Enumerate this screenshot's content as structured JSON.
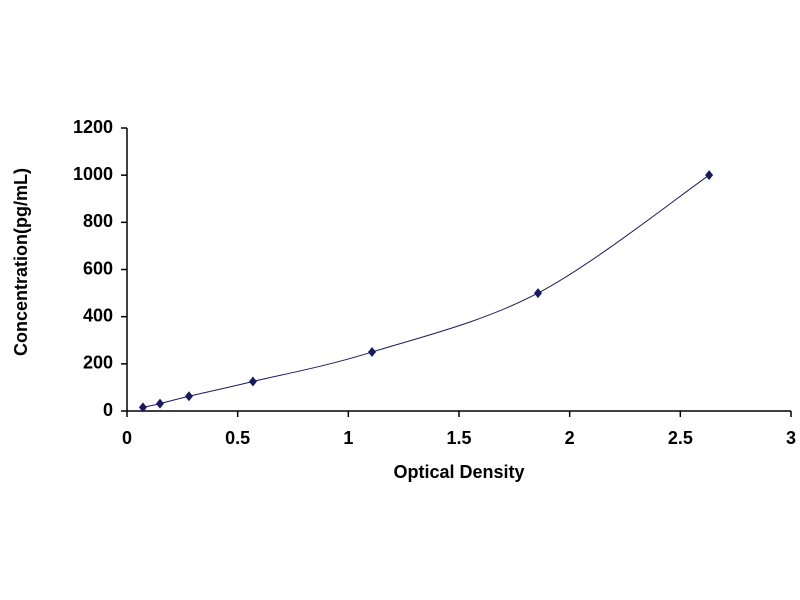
{
  "chart_data": {
    "type": "scatter",
    "x_label": "Optical Density",
    "y_label": "Concentration(pg/mL)",
    "series": [
      {
        "color": "#1a1a5e",
        "x": [
          0.072,
          0.149,
          0.28,
          0.569,
          1.107,
          1.857,
          2.63
        ],
        "values": [
          15.6,
          31.25,
          62.5,
          125,
          250,
          500,
          1000
        ]
      }
    ],
    "smooth_line": true,
    "xlim": [
      0,
      3
    ],
    "xticks": [
      0,
      0.5,
      1,
      1.5,
      2,
      2.5,
      3
    ],
    "ylim": [
      0,
      1200
    ],
    "yticks": [
      0,
      200,
      400,
      600,
      800,
      1000,
      1200
    ],
    "grid": false
  }
}
